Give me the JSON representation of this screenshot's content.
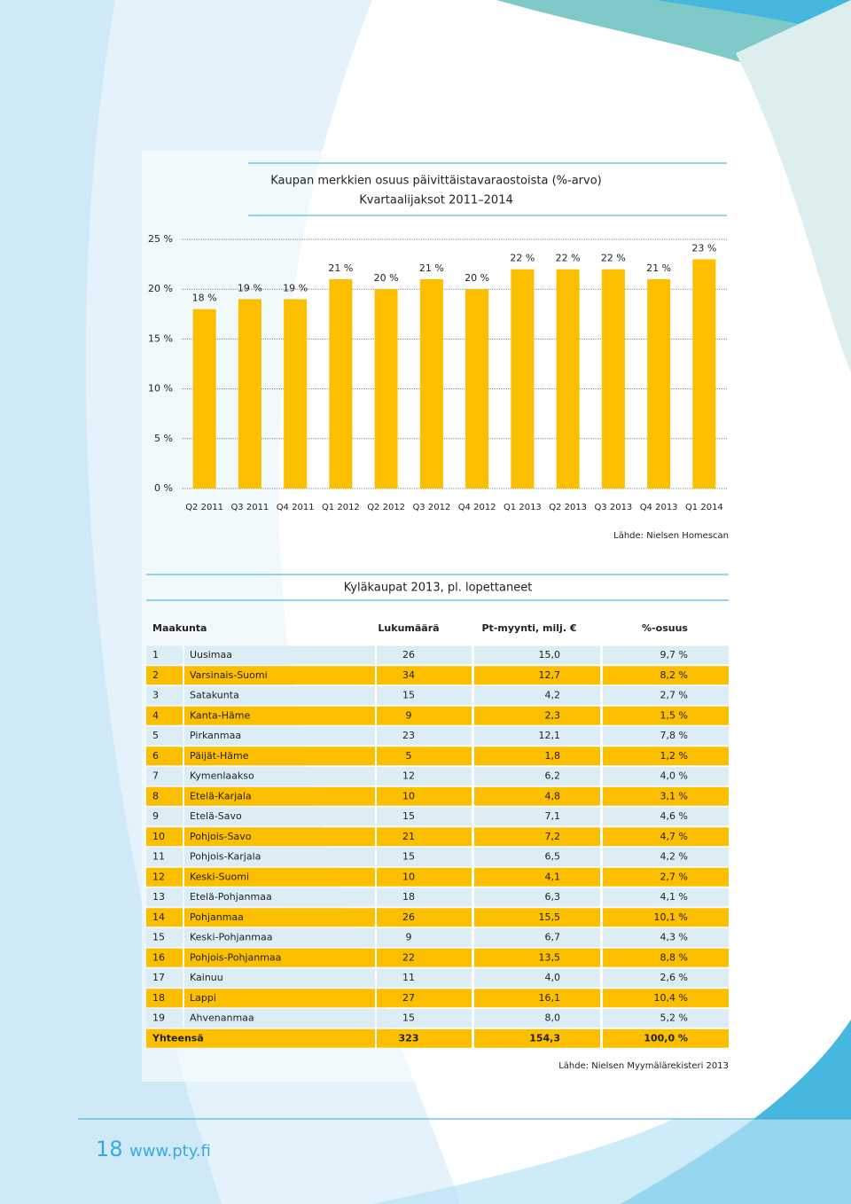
{
  "chart_data": {
    "type": "bar",
    "title": "Kaupan merkkien osuus päivittäistavaraostoista (%-arvo)",
    "subtitle": "Kvartaalijaksot 2011–2014",
    "categories": [
      "Q2 2011",
      "Q3 2011",
      "Q4 2011",
      "Q1 2012",
      "Q2 2012",
      "Q3 2012",
      "Q4 2012",
      "Q1 2013",
      "Q2 2013",
      "Q3 2013",
      "Q4 2013",
      "Q1 2014"
    ],
    "values": [
      18,
      19,
      19,
      21,
      20,
      21,
      20,
      22,
      22,
      22,
      21,
      23
    ],
    "value_labels": [
      "18 %",
      "19 %",
      "19 %",
      "21 %",
      "20 %",
      "21 %",
      "20 %",
      "22 %",
      "22 %",
      "22 %",
      "21 %",
      "23 %"
    ],
    "color": "#fbbf00",
    "ylim": [
      0,
      25
    ],
    "yticks": [
      {
        "value": 0,
        "label": "0 %"
      },
      {
        "value": 5,
        "label": "5 %"
      },
      {
        "value": 10,
        "label": "10 %"
      },
      {
        "value": 15,
        "label": "15 %"
      },
      {
        "value": 20,
        "label": "20 %"
      },
      {
        "value": 25,
        "label": "25 %"
      }
    ],
    "grid": true,
    "source": "Lähde: Nielsen Homescan"
  },
  "table": {
    "title": "Kyläkaupat 2013, pl. lopettaneet",
    "headers": [
      "Maakunta",
      "Lukumäärä",
      "Pt-myynti, milj. €",
      "%-osuus"
    ],
    "rows": [
      [
        "1",
        "Uusimaa",
        "26",
        "15,0",
        "9,7 %"
      ],
      [
        "2",
        "Varsinais-Suomi",
        "34",
        "12,7",
        "8,2 %"
      ],
      [
        "3",
        "Satakunta",
        "15",
        "4,2",
        "2,7 %"
      ],
      [
        "4",
        "Kanta-Häme",
        "9",
        "2,3",
        "1,5 %"
      ],
      [
        "5",
        "Pirkanmaa",
        "23",
        "12,1",
        "7,8 %"
      ],
      [
        "6",
        "Päijät-Häme",
        "5",
        "1,8",
        "1,2 %"
      ],
      [
        "7",
        "Kymenlaakso",
        "12",
        "6,2",
        "4,0 %"
      ],
      [
        "8",
        "Etelä-Karjala",
        "10",
        "4,8",
        "3,1 %"
      ],
      [
        "9",
        "Etelä-Savo",
        "15",
        "7,1",
        "4,6 %"
      ],
      [
        "10",
        "Pohjois-Savo",
        "21",
        "7,2",
        "4,7 %"
      ],
      [
        "11",
        "Pohjois-Karjala",
        "15",
        "6,5",
        "4,2 %"
      ],
      [
        "12",
        "Keski-Suomi",
        "10",
        "4,1",
        "2,7 %"
      ],
      [
        "13",
        "Etelä-Pohjanmaa",
        "18",
        "6,3",
        "4,1 %"
      ],
      [
        "14",
        "Pohjanmaa",
        "26",
        "15,5",
        "10,1 %"
      ],
      [
        "15",
        "Keski-Pohjanmaa",
        "9",
        "6,7",
        "4,3 %"
      ],
      [
        "16",
        "Pohjois-Pohjanmaa",
        "22",
        "13,5",
        "8,8 %"
      ],
      [
        "17",
        "Kainuu",
        "11",
        "4,0",
        "2,6 %"
      ],
      [
        "18",
        "Lappi",
        "27",
        "16,1",
        "10,4 %"
      ],
      [
        "19",
        "Ahvenanmaa",
        "15",
        "8,0",
        "5,2 %"
      ]
    ],
    "total": [
      "Yhteensä",
      "323",
      "154,3",
      "100,0 %"
    ],
    "source": "Lähde: Nielsen Myymälärekisteri 2013"
  },
  "footer": {
    "page": "18",
    "url": "www.pty.fi"
  }
}
